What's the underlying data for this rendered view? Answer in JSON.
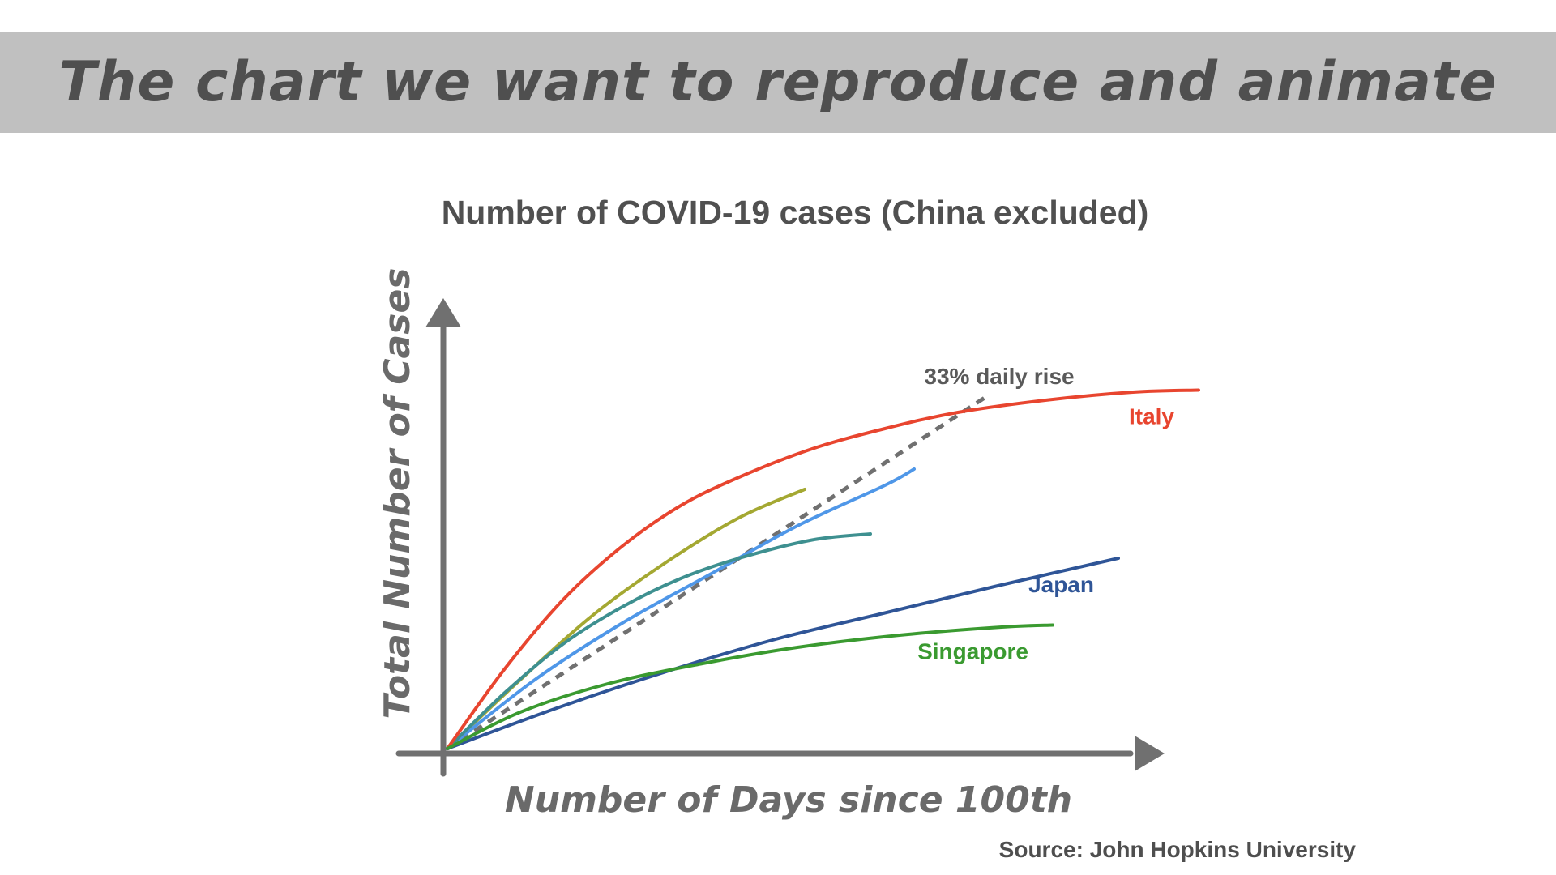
{
  "header": {
    "title": "The chart we want to reproduce and animate"
  },
  "chart_data": {
    "type": "line",
    "title": "Number of COVID-19 cases (China excluded)",
    "xlabel": "Number of Days since 100th",
    "ylabel": "Total Number of Cases",
    "source": "Source: John Hopkins University",
    "xlim": [
      0,
      100
    ],
    "ylim": [
      0,
      100
    ],
    "grid": false,
    "ticks": false,
    "reference_line": {
      "label": "33% daily rise",
      "color": "#707070",
      "x": [
        0,
        74
      ],
      "y": [
        0,
        87
      ]
    },
    "series": [
      {
        "name": "Italy",
        "color": "#e8452f",
        "labeled": true,
        "x": [
          0,
          8,
          16,
          24,
          32,
          40,
          50,
          60,
          70,
          82,
          94,
          103
        ],
        "y": [
          0,
          20,
          37,
          50,
          60,
          67,
          74,
          79,
          83,
          86,
          88,
          88.5
        ]
      },
      {
        "name": "Japan",
        "color": "#2f5597",
        "labeled": true,
        "x": [
          0,
          15,
          30,
          45,
          60,
          75,
          92
        ],
        "y": [
          0,
          10,
          19,
          27,
          33.5,
          40,
          47
        ]
      },
      {
        "name": "Singapore",
        "color": "#3a9a30",
        "labeled": true,
        "x": [
          0,
          10,
          22,
          35,
          48,
          62,
          76,
          83
        ],
        "y": [
          0,
          9,
          16,
          21,
          25,
          28,
          30,
          30.5
        ]
      },
      {
        "name": "",
        "color": "#a4a832",
        "labeled": false,
        "x": [
          0,
          10,
          20,
          30,
          40,
          49
        ],
        "y": [
          0,
          17,
          33,
          46,
          57,
          64
        ]
      },
      {
        "name": "",
        "color": "#4f97e8",
        "labeled": false,
        "x": [
          0,
          12,
          24,
          36,
          48,
          60,
          64
        ],
        "y": [
          0,
          17,
          31,
          43,
          55,
          65,
          69
        ]
      },
      {
        "name": "",
        "color": "#3e9090",
        "labeled": false,
        "x": [
          0,
          8,
          16,
          24,
          32,
          40,
          50,
          58
        ],
        "y": [
          0,
          14,
          26,
          35,
          42,
          47,
          51.5,
          53
        ]
      }
    ]
  }
}
